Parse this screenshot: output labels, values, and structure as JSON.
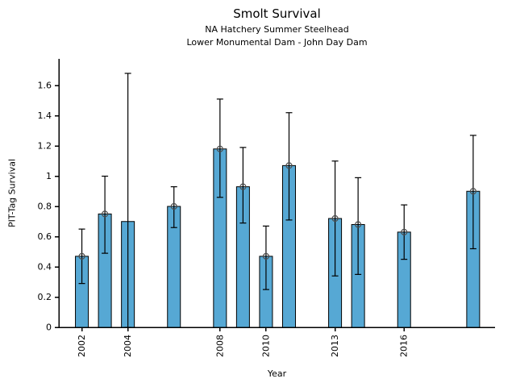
{
  "chart_data": {
    "type": "bar",
    "title": "Smolt Survival",
    "subtitle_line1": "NA Hatchery Summer Steelhead",
    "subtitle_line2": "Lower Monumental Dam - John Day Dam",
    "xlabel": "Year",
    "ylabel": "PIT-Tag Survival",
    "xlim": [
      2001,
      2019.95
    ],
    "ylim": [
      0,
      1.776
    ],
    "grid": false,
    "legend": "none",
    "ytick_values": [
      0,
      0.2,
      0.4,
      0.6,
      0.8,
      1,
      1.2,
      1.4,
      1.6
    ],
    "ytick_labels": [
      "0",
      "0.2",
      "0.4",
      "0.6",
      "0.8",
      "1",
      "1.2",
      "1.4",
      "1.6"
    ],
    "xtick_years": [
      2002,
      2004,
      2008,
      2010,
      2013,
      2016
    ],
    "xtick_labels": [
      "2002",
      "2004",
      "2008",
      "2010",
      "2013",
      "2016"
    ],
    "bar_color": "#56a8d4",
    "bar_edge_color": "#000000",
    "error_bar_color": "#000000",
    "marker_style": "open-circle",
    "marker_color": "#4d4d4d",
    "points": [
      {
        "year": 2002,
        "value": 0.47,
        "ci_low": 0.29,
        "ci_high": 0.65,
        "marker": true
      },
      {
        "year": 2003,
        "value": 0.75,
        "ci_low": 0.49,
        "ci_high": 1.0,
        "marker": true
      },
      {
        "year": 2004,
        "value": 0.7,
        "ci_low": 0.0,
        "ci_high": 1.68,
        "marker": false
      },
      {
        "year": 2006,
        "value": 0.8,
        "ci_low": 0.66,
        "ci_high": 0.93,
        "marker": true
      },
      {
        "year": 2008,
        "value": 1.18,
        "ci_low": 0.86,
        "ci_high": 1.51,
        "marker": true
      },
      {
        "year": 2009,
        "value": 0.93,
        "ci_low": 0.69,
        "ci_high": 1.19,
        "marker": true
      },
      {
        "year": 2010,
        "value": 0.47,
        "ci_low": 0.25,
        "ci_high": 0.67,
        "marker": true
      },
      {
        "year": 2011,
        "value": 1.07,
        "ci_low": 0.71,
        "ci_high": 1.42,
        "marker": true
      },
      {
        "year": 2013,
        "value": 0.72,
        "ci_low": 0.34,
        "ci_high": 1.1,
        "marker": true
      },
      {
        "year": 2014,
        "value": 0.68,
        "ci_low": 0.35,
        "ci_high": 0.99,
        "marker": true
      },
      {
        "year": 2016,
        "value": 0.63,
        "ci_low": 0.45,
        "ci_high": 0.81,
        "marker": true
      },
      {
        "year": 2019,
        "value": 0.9,
        "ci_low": 0.52,
        "ci_high": 1.27,
        "marker": true
      }
    ]
  }
}
